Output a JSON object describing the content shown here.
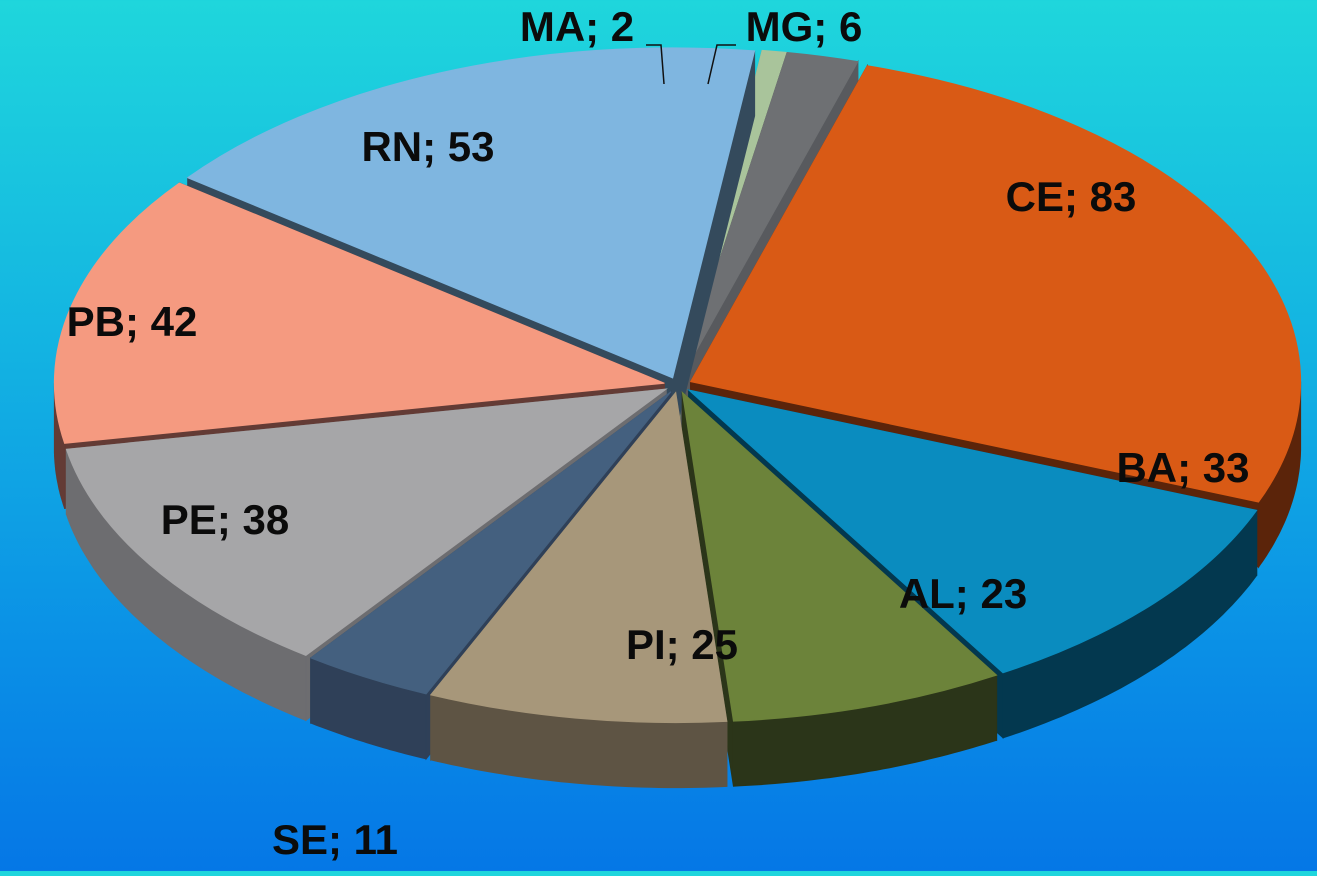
{
  "chart_data": {
    "type": "pie",
    "style": "3d-exploded",
    "title": "",
    "label_format": "{category}; {value}",
    "categories": [
      "MG",
      "CE",
      "BA",
      "AL",
      "PI",
      "SE",
      "PE",
      "PB",
      "RN",
      "MA"
    ],
    "values": [
      6,
      83,
      33,
      23,
      25,
      11,
      38,
      42,
      53,
      2
    ],
    "colors": [
      "#6e7073",
      "#d95a15",
      "#0a8cbf",
      "#6c833a",
      "#a7977a",
      "#44607f",
      "#a6a6a8",
      "#f59a80",
      "#7fb6e0",
      "#a9c49b"
    ],
    "side_colors": [
      "#585a5e",
      "#5b240a",
      "#03384f",
      "#2b3519",
      "#5e5444",
      "#2f4058",
      "#6d6d70",
      "#633b35",
      "#344a5c",
      "#778c6d"
    ],
    "legend": "none",
    "labels": [
      "MG; 6",
      "CE; 83",
      "BA; 33",
      "AL; 23",
      "PI; 25",
      "SE; 11",
      "PE; 38",
      "PB; 42",
      "RN; 53",
      "MA; 2"
    ]
  }
}
